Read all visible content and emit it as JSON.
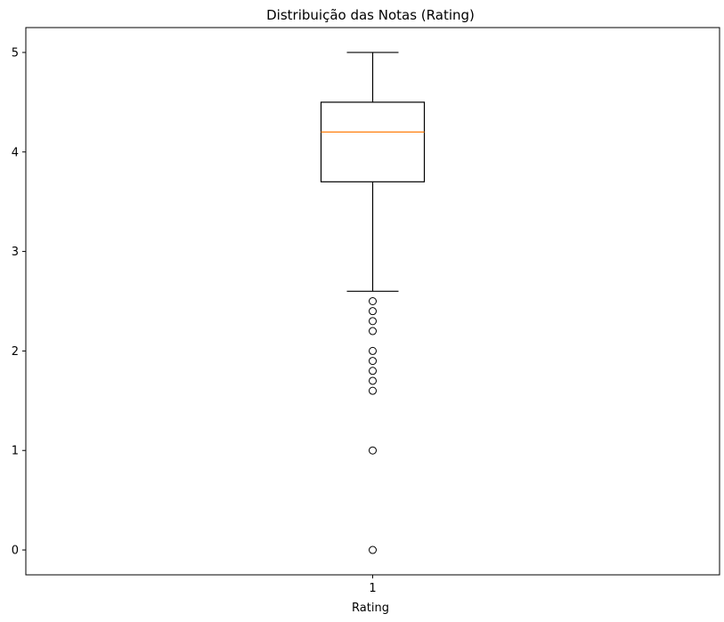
{
  "chart_data": {
    "type": "boxplot",
    "title": "Distribuição das Notas (Rating)",
    "xlabel": "Rating",
    "ylabel": "",
    "categories": [
      "1"
    ],
    "ylim": [
      -0.25,
      5.25
    ],
    "yticks": [
      0,
      1,
      2,
      3,
      4,
      5
    ],
    "grid": false,
    "legend": "none",
    "boxes": [
      {
        "category": "1",
        "whisker_low": 2.6,
        "q1": 3.7,
        "median": 4.2,
        "q3": 4.5,
        "whisker_high": 5.0,
        "outliers": [
          2.5,
          2.4,
          2.3,
          2.2,
          2.0,
          1.9,
          1.8,
          1.7,
          1.6,
          1.0,
          0.0
        ]
      }
    ],
    "colors": {
      "box": "#000000",
      "median": "#ff7f0e",
      "whisker": "#000000",
      "outlier": "#000000"
    }
  }
}
